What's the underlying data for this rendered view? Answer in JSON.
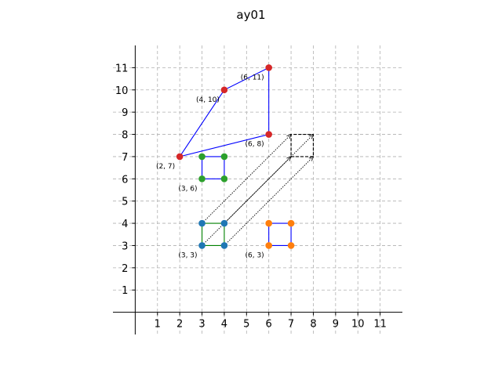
{
  "chart_data": {
    "type": "scatter",
    "title": "ay01",
    "xlabel": "",
    "ylabel": "",
    "xlim": [
      -1,
      12
    ],
    "ylim": [
      -1,
      12
    ],
    "x_ticks": [
      1,
      2,
      3,
      4,
      5,
      6,
      7,
      8,
      9,
      10,
      11
    ],
    "y_ticks": [
      1,
      2,
      3,
      4,
      5,
      6,
      7,
      8,
      9,
      10,
      11
    ],
    "grid": true,
    "colors": {
      "blue_points": "#1f77b4",
      "orange_points": "#ff7f0e",
      "green_points": "#2ca02c",
      "red_points": "#d62728",
      "blue_line": "#0000ff",
      "green_line": "#008000",
      "black": "#000000",
      "grid": "#b0b0b0"
    },
    "shapes": [
      {
        "id": "square-origin",
        "points": [
          [
            3,
            3
          ],
          [
            4,
            3
          ],
          [
            4,
            4
          ],
          [
            3,
            4
          ]
        ],
        "point_color": "#1f77b4",
        "edge_color": "#008000",
        "closed": true
      },
      {
        "id": "square-translated-right",
        "points": [
          [
            6,
            3
          ],
          [
            7,
            3
          ],
          [
            7,
            4
          ],
          [
            6,
            4
          ]
        ],
        "point_color": "#ff7f0e",
        "edge_color": "#0000ff",
        "closed": true
      },
      {
        "id": "square-translated-up",
        "points": [
          [
            3,
            6
          ],
          [
            4,
            6
          ],
          [
            4,
            7
          ],
          [
            3,
            7
          ]
        ],
        "point_color": "#2ca02c",
        "edge_color": "#0000ff",
        "closed": true
      },
      {
        "id": "quadrilateral",
        "points": [
          [
            2,
            7
          ],
          [
            4,
            10
          ],
          [
            6,
            11
          ],
          [
            6,
            8
          ]
        ],
        "point_color": "#d62728",
        "edge_color": "#0000ff",
        "closed": true
      },
      {
        "id": "square-dashed",
        "points": [
          [
            7,
            7
          ],
          [
            8,
            7
          ],
          [
            8,
            8
          ],
          [
            7,
            8
          ]
        ],
        "point_color": null,
        "edge_color": "#000000",
        "closed": true,
        "dashed": true
      }
    ],
    "arrows": [
      {
        "from": [
          3,
          3
        ],
        "to": [
          7,
          7
        ]
      },
      {
        "from": [
          4,
          3
        ],
        "to": [
          8,
          7
        ]
      },
      {
        "from": [
          3,
          4
        ],
        "to": [
          7,
          8
        ]
      },
      {
        "from": [
          4,
          4
        ],
        "to": [
          8,
          8
        ]
      }
    ],
    "annotations": [
      {
        "text": "(3, 3)",
        "at": [
          3,
          3
        ]
      },
      {
        "text": "(6, 3)",
        "at": [
          6,
          3
        ]
      },
      {
        "text": "(3, 6)",
        "at": [
          3,
          6
        ]
      },
      {
        "text": "(2, 7)",
        "at": [
          2,
          7
        ]
      },
      {
        "text": "(4, 10)",
        "at": [
          4,
          10
        ]
      },
      {
        "text": "(6, 11)",
        "at": [
          6,
          11
        ]
      },
      {
        "text": "(6, 8)",
        "at": [
          6,
          8
        ]
      }
    ]
  }
}
